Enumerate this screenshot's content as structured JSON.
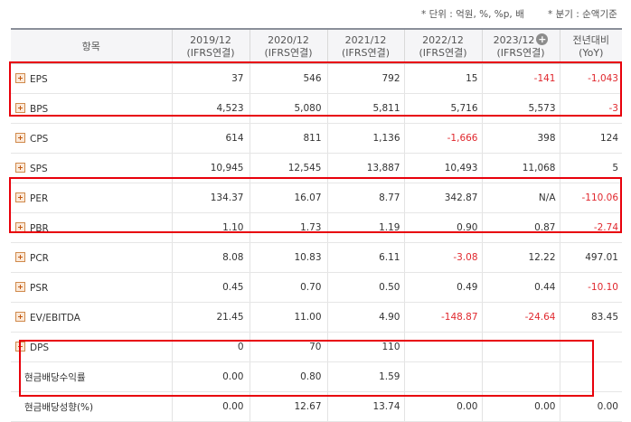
{
  "notes": {
    "unit": "* 단위 : 억원, %, %p, 배",
    "basis": "* 분기 : 순액기준"
  },
  "header": {
    "item": "항목",
    "columns": [
      {
        "year": "2019/12",
        "sub": "(IFRS연결)"
      },
      {
        "year": "2020/12",
        "sub": "(IFRS연결)"
      },
      {
        "year": "2021/12",
        "sub": "(IFRS연결)"
      },
      {
        "year": "2022/12",
        "sub": "(IFRS연결)"
      },
      {
        "year": "2023/12",
        "sub": "(IFRS연결)"
      }
    ],
    "yoy": {
      "line1": "전년대비",
      "line2": "(YoY)"
    }
  },
  "rows": [
    {
      "label": "EPS",
      "values": [
        "37",
        "546",
        "792",
        "15",
        "-141",
        "-1,043"
      ]
    },
    {
      "label": "BPS",
      "values": [
        "4,523",
        "5,080",
        "5,811",
        "5,716",
        "5,573",
        "-3"
      ]
    },
    {
      "label": "CPS",
      "values": [
        "614",
        "811",
        "1,136",
        "-1,666",
        "398",
        "124"
      ]
    },
    {
      "label": "SPS",
      "values": [
        "10,945",
        "12,545",
        "13,887",
        "10,493",
        "11,068",
        "5"
      ]
    },
    {
      "label": "PER",
      "values": [
        "134.37",
        "16.07",
        "8.77",
        "342.87",
        "N/A",
        "-110.06"
      ]
    },
    {
      "label": "PBR",
      "values": [
        "1.10",
        "1.73",
        "1.19",
        "0.90",
        "0.87",
        "-2.74"
      ]
    },
    {
      "label": "PCR",
      "values": [
        "8.08",
        "10.83",
        "6.11",
        "-3.08",
        "12.22",
        "497.01"
      ]
    },
    {
      "label": "PSR",
      "values": [
        "0.45",
        "0.70",
        "0.50",
        "0.49",
        "0.44",
        "-10.10"
      ]
    },
    {
      "label": "EV/EBITDA",
      "values": [
        "21.45",
        "11.00",
        "4.90",
        "-148.87",
        "-24.64",
        "83.45"
      ]
    },
    {
      "label": "DPS",
      "values": [
        "0",
        "70",
        "110",
        "",
        "",
        ""
      ]
    },
    {
      "label": "현금배당수익률",
      "values": [
        "0.00",
        "0.80",
        "1.59",
        "",
        "",
        ""
      ]
    },
    {
      "label": "현금배당성향(%)",
      "values": [
        "0.00",
        "12.67",
        "13.74",
        "0.00",
        "0.00",
        "0.00"
      ]
    }
  ],
  "colors": {
    "negative": "#e0282e",
    "highlight": "#e8000b",
    "header_bg": "#f5f5f7"
  },
  "icons": {
    "expand": "plus-square-icon",
    "header_add": "plus-circle-icon"
  }
}
